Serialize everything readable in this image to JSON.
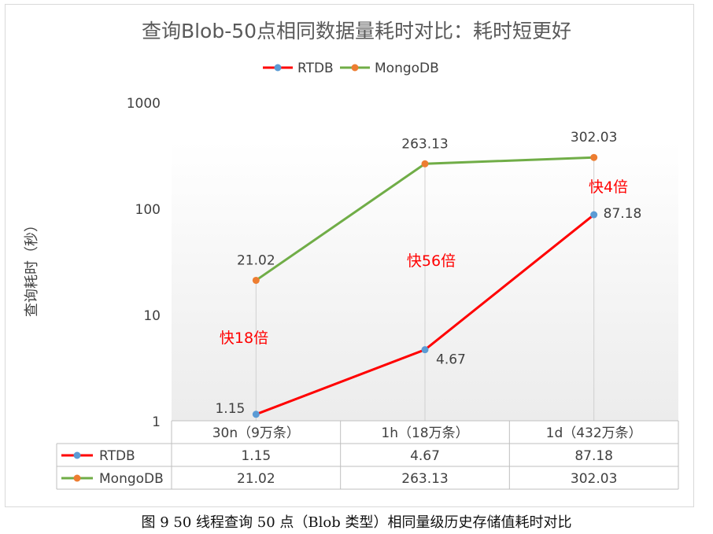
{
  "caption": "图 9 50 线程查询 50 点（Blob 类型）相同量级历史存储值耗时对比",
  "chart_data": {
    "type": "line",
    "title": "查询Blob-50点相同数据量耗时对比：耗时短更好",
    "ylabel": "查询耗时（秒）",
    "yscale": "log",
    "ylim": [
      1,
      1000
    ],
    "yticks": [
      1,
      10,
      100,
      1000
    ],
    "ytick_labels": [
      "1",
      "10",
      "100",
      "1000"
    ],
    "grid": "vertical",
    "legend": "top",
    "categories": [
      "30n（9万条）",
      "1h（18万条）",
      "1d（432万条）"
    ],
    "series": [
      {
        "name": "RTDB",
        "values": [
          1.15,
          4.67,
          87.18
        ],
        "labels": [
          "1.15",
          "4.67",
          "87.18"
        ],
        "line_color": "#ff0000",
        "marker_color": "#5b9bd5"
      },
      {
        "name": "MongoDB",
        "values": [
          21.02,
          263.13,
          302.03
        ],
        "labels": [
          "21.02",
          "263.13",
          "302.03"
        ],
        "line_color": "#70ad47",
        "marker_color": "#ed7d31"
      }
    ],
    "annotations": [
      {
        "text": "快18倍",
        "color": "#ff0000"
      },
      {
        "text": "快56倍",
        "color": "#ff0000"
      },
      {
        "text": "快4倍",
        "color": "#ff0000"
      }
    ],
    "data_table": {
      "rows": [
        {
          "series": "RTDB",
          "cells": [
            "1.15",
            "4.67",
            "87.18"
          ]
        },
        {
          "series": "MongoDB",
          "cells": [
            "21.02",
            "263.13",
            "302.03"
          ]
        }
      ]
    }
  }
}
